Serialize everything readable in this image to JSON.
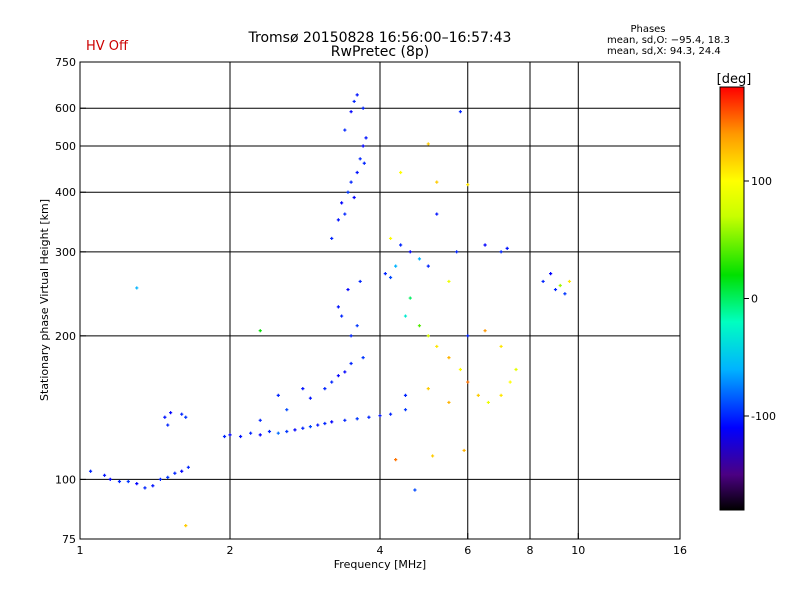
{
  "status_label": "HV Off",
  "status_color": "#cc0000",
  "chart_data": {
    "type": "scatter",
    "title": "Tromsø 20150828 16:56:00–16:57:43",
    "subtitle": "RwPretec (8p)",
    "xlabel": "Frequency [MHz]",
    "ylabel": "Stationary phase Virtual Height [km]",
    "x_scale": "log",
    "y_scale": "log",
    "xlim": [
      1,
      16
    ],
    "ylim": [
      75,
      750
    ],
    "x_ticks": [
      {
        "value": 1,
        "label": "1"
      },
      {
        "value": 2,
        "label": "2"
      },
      {
        "value": 4,
        "label": "4"
      },
      {
        "value": 6,
        "label": "6"
      },
      {
        "value": 8,
        "label": "8"
      },
      {
        "value": 10,
        "label": "10"
      },
      {
        "value": 16,
        "label": "16"
      }
    ],
    "x_gridlines": [
      2,
      4,
      6,
      8,
      10
    ],
    "y_ticks": [
      {
        "value": 75,
        "label": "75"
      },
      {
        "value": 100,
        "label": "100"
      },
      {
        "value": 200,
        "label": "200"
      },
      {
        "value": 300,
        "label": "300"
      },
      {
        "value": 400,
        "label": "400"
      },
      {
        "value": 500,
        "label": "500"
      },
      {
        "value": 600,
        "label": "600"
      },
      {
        "value": 750,
        "label": "750"
      }
    ],
    "y_gridlines": [
      100,
      200,
      300,
      400,
      500,
      600
    ],
    "grid": true,
    "phase_stats": {
      "title": "Phases",
      "line_o": "mean, sd,O: −95.4, 18.3",
      "line_x": "mean, sd,X:  94.3, 24.4"
    },
    "colorbar": {
      "label": "[deg]",
      "range": [
        -180,
        180
      ],
      "ticks": [
        {
          "value": 100,
          "label": "100"
        },
        {
          "value": 0,
          "label": "0"
        },
        {
          "value": -100,
          "label": "-100"
        }
      ],
      "stops": [
        {
          "value": -180,
          "color": "#000000"
        },
        {
          "value": -150,
          "color": "#4b0082"
        },
        {
          "value": -110,
          "color": "#0000ff"
        },
        {
          "value": -60,
          "color": "#00b4ff"
        },
        {
          "value": -20,
          "color": "#00ffc0"
        },
        {
          "value": 20,
          "color": "#00e000"
        },
        {
          "value": 70,
          "color": "#c8ff00"
        },
        {
          "value": 100,
          "color": "#ffff00"
        },
        {
          "value": 140,
          "color": "#ff9900"
        },
        {
          "value": 180,
          "color": "#ff0000"
        }
      ]
    },
    "series": [
      {
        "points": [
          [
            1.05,
            104,
            -100
          ],
          [
            1.12,
            102,
            -105
          ],
          [
            1.15,
            100,
            -110
          ],
          [
            1.2,
            99,
            -100
          ],
          [
            1.25,
            99,
            -95
          ],
          [
            1.3,
            98,
            -110
          ],
          [
            1.35,
            96,
            -100
          ],
          [
            1.4,
            97,
            -105
          ],
          [
            1.45,
            100,
            -100
          ],
          [
            1.5,
            101,
            -95
          ],
          [
            1.55,
            103,
            -100
          ],
          [
            1.6,
            104,
            -110
          ],
          [
            1.65,
            106,
            -100
          ],
          [
            1.48,
            135,
            -105
          ],
          [
            1.5,
            130,
            -100
          ],
          [
            1.52,
            138,
            -110
          ],
          [
            1.6,
            137,
            -100
          ],
          [
            1.63,
            135,
            -95
          ],
          [
            1.3,
            252,
            -60
          ],
          [
            1.63,
            80,
            120
          ],
          [
            1.95,
            123,
            -100
          ],
          [
            2,
            124,
            -110
          ],
          [
            2.1,
            123,
            -105
          ],
          [
            2.2,
            125,
            -100
          ],
          [
            2.3,
            124,
            -110
          ],
          [
            2.4,
            126,
            -100
          ],
          [
            2.5,
            125,
            -80
          ],
          [
            2.6,
            126,
            -95
          ],
          [
            2.7,
            127,
            -110
          ],
          [
            2.8,
            128,
            -100
          ],
          [
            2.9,
            129,
            -90
          ],
          [
            3,
            130,
            -105
          ],
          [
            3.1,
            131,
            -100
          ],
          [
            3.2,
            132,
            -110
          ],
          [
            3.4,
            133,
            -100
          ],
          [
            3.6,
            134,
            -95
          ],
          [
            3.8,
            135,
            -100
          ],
          [
            4,
            136,
            -105
          ],
          [
            4.2,
            137,
            -100
          ],
          [
            4.5,
            140,
            -95
          ],
          [
            2.3,
            133,
            -100
          ],
          [
            2.6,
            140,
            -90
          ],
          [
            2.9,
            148,
            -105
          ],
          [
            3.1,
            155,
            -100
          ],
          [
            3.3,
            165,
            -110
          ],
          [
            3.5,
            175,
            -100
          ],
          [
            3.7,
            180,
            -95
          ],
          [
            2.5,
            150,
            -100
          ],
          [
            2.8,
            155,
            -105
          ],
          [
            3.2,
            160,
            -100
          ],
          [
            3.4,
            168,
            -110
          ],
          [
            3.2,
            320,
            -100
          ],
          [
            3.3,
            350,
            -105
          ],
          [
            3.35,
            380,
            -110
          ],
          [
            3.4,
            360,
            -100
          ],
          [
            3.45,
            400,
            -95
          ],
          [
            3.5,
            420,
            -100
          ],
          [
            3.55,
            390,
            -110
          ],
          [
            3.6,
            440,
            -105
          ],
          [
            3.65,
            470,
            -100
          ],
          [
            3.7,
            500,
            -110
          ],
          [
            3.72,
            460,
            -100
          ],
          [
            3.75,
            520,
            -105
          ],
          [
            3.4,
            540,
            -100
          ],
          [
            3.5,
            590,
            -110
          ],
          [
            3.55,
            620,
            -100
          ],
          [
            3.6,
            640,
            -105
          ],
          [
            3.7,
            600,
            -100
          ],
          [
            3.3,
            230,
            -105
          ],
          [
            3.35,
            220,
            -100
          ],
          [
            3.45,
            250,
            -110
          ],
          [
            3.5,
            200,
            -100
          ],
          [
            3.6,
            210,
            -95
          ],
          [
            3.65,
            260,
            -100
          ],
          [
            4.1,
            270,
            -100
          ],
          [
            4.2,
            265,
            -90
          ],
          [
            4.3,
            280,
            -60
          ],
          [
            4.5,
            220,
            -30
          ],
          [
            4.6,
            240,
            0
          ],
          [
            4.8,
            210,
            40
          ],
          [
            5,
            200,
            80
          ],
          [
            5.2,
            190,
            110
          ],
          [
            5.5,
            180,
            130
          ],
          [
            5.8,
            170,
            100
          ],
          [
            6,
            160,
            150
          ],
          [
            6.3,
            150,
            120
          ],
          [
            6.6,
            145,
            90
          ],
          [
            7,
            150,
            110
          ],
          [
            7.3,
            160,
            100
          ],
          [
            7.5,
            170,
            85
          ],
          [
            4.2,
            320,
            100
          ],
          [
            4.4,
            310,
            -100
          ],
          [
            4.6,
            300,
            -110
          ],
          [
            4.8,
            290,
            -60
          ],
          [
            5,
            280,
            -100
          ],
          [
            5.2,
            360,
            -105
          ],
          [
            5.5,
            260,
            90
          ],
          [
            5.7,
            300,
            -100
          ],
          [
            6.5,
            310,
            -110
          ],
          [
            7,
            300,
            -100
          ],
          [
            7.2,
            305,
            -105
          ],
          [
            8.5,
            260,
            -100
          ],
          [
            8.8,
            270,
            -110
          ],
          [
            9,
            250,
            -100
          ],
          [
            9.2,
            255,
            60
          ],
          [
            9.4,
            245,
            -95
          ],
          [
            9.6,
            260,
            110
          ],
          [
            4.5,
            150,
            -100
          ],
          [
            5,
            155,
            120
          ],
          [
            5.5,
            145,
            130
          ],
          [
            6,
            200,
            -100
          ],
          [
            6.5,
            205,
            140
          ],
          [
            7,
            190,
            110
          ],
          [
            4.3,
            110,
            150
          ],
          [
            5.1,
            112,
            120
          ],
          [
            5.9,
            115,
            130
          ],
          [
            4.7,
            95,
            -90
          ],
          [
            5,
            505,
            120
          ],
          [
            6,
            415,
            110
          ],
          [
            5.8,
            590,
            -100
          ],
          [
            4.4,
            440,
            100
          ],
          [
            5.2,
            420,
            120
          ],
          [
            2.3,
            205,
            20
          ]
        ]
      }
    ]
  }
}
